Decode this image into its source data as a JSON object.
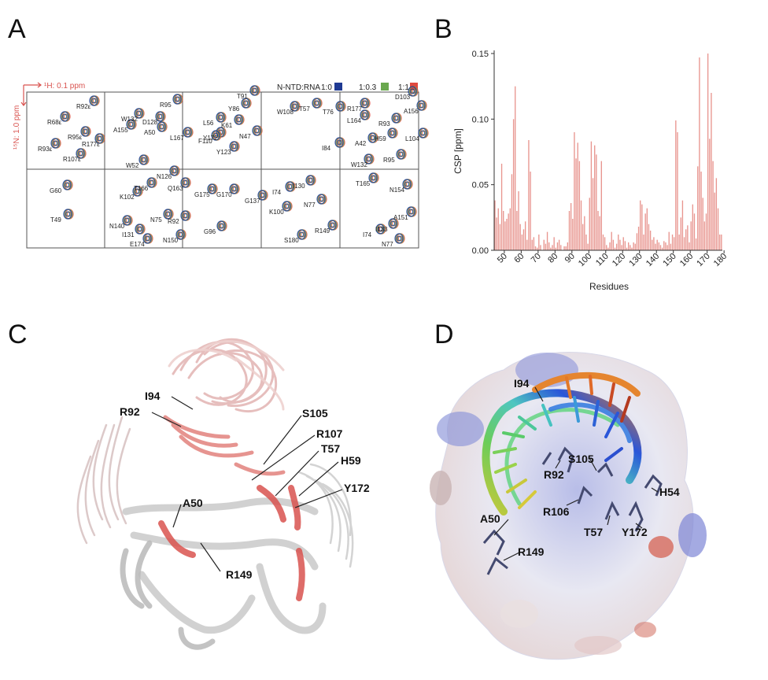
{
  "panels": {
    "a": "A",
    "b": "B",
    "c": "C",
    "d": "D"
  },
  "panel_a": {
    "proton_scale": "¹H: 0.1 ppm",
    "nitrogen_scale": "¹⁵N: 1.0 ppm",
    "legend": {
      "title": "N-NTD:RNA",
      "items": [
        {
          "label": "1:0",
          "color": "#1f3a93"
        },
        {
          "label": "1:0.3",
          "color": "#6aa84f"
        },
        {
          "label": "1:1",
          "color": "#e0483e"
        }
      ]
    },
    "peak_labels": [
      "R92ε",
      "R68ε",
      "R95ε",
      "R177ε",
      "R93ε",
      "R107ε",
      "R95",
      "W132",
      "D128",
      "A155",
      "A50",
      "L167",
      "W52",
      "T91",
      "Y86",
      "L56",
      "K61",
      "N47",
      "Y172",
      "Y123",
      "F110",
      "W108",
      "T57",
      "T76",
      "I84",
      "R177",
      "D103",
      "A156",
      "L164",
      "R93",
      "H59",
      "L104",
      "A42",
      "W132",
      "R95",
      "G60",
      "T49",
      "N126",
      "T166",
      "Q163",
      "K102",
      "N75",
      "R92",
      "N140",
      "I131",
      "E174",
      "N150",
      "G175",
      "G170",
      "G137",
      "G96",
      "I74",
      "I130",
      "N77",
      "K100",
      "S180",
      "R149",
      "T165",
      "N154",
      "A151",
      "I133",
      "I74",
      "N77"
    ]
  },
  "chart_data": {
    "type": "bar",
    "ylabel": "CSP [ppm]",
    "xlabel": "Residues",
    "ylim": [
      0,
      0.15
    ],
    "yticks": [
      "0.00",
      "0.05",
      "0.10",
      "0.15"
    ],
    "xticks": [
      "50",
      "60",
      "70",
      "80",
      "90",
      "100",
      "110",
      "120",
      "130",
      "140",
      "150",
      "160",
      "170",
      "180"
    ],
    "bar_color": "#e8958f",
    "x_start": 44,
    "values": [
      0.038,
      0.025,
      0.032,
      0.02,
      0.066,
      0.03,
      0.022,
      0.024,
      0.028,
      0.032,
      0.058,
      0.1,
      0.125,
      0.03,
      0.045,
      0.02,
      0.012,
      0.016,
      0.022,
      0.008,
      0.084,
      0.06,
      0.008,
      0.01,
      0.003,
      0.002,
      0.012,
      0.004,
      0.0,
      0.008,
      0.005,
      0.014,
      0.006,
      0.002,
      0.004,
      0.01,
      0.002,
      0.006,
      0.008,
      0.004,
      0.0,
      0.003,
      0.003,
      0.006,
      0.03,
      0.036,
      0.024,
      0.09,
      0.07,
      0.082,
      0.068,
      0.038,
      0.02,
      0.026,
      0.012,
      0.005,
      0.04,
      0.083,
      0.055,
      0.08,
      0.073,
      0.03,
      0.026,
      0.068,
      0.012,
      0.01,
      0.004,
      0.002,
      0.006,
      0.014,
      0.008,
      0.002,
      0.005,
      0.012,
      0.008,
      0.004,
      0.01,
      0.007,
      0.002,
      0.006,
      0.004,
      0.002,
      0.006,
      0.005,
      0.013,
      0.018,
      0.038,
      0.035,
      0.012,
      0.028,
      0.032,
      0.02,
      0.015,
      0.008,
      0.01,
      0.005,
      0.008,
      0.006,
      0.004,
      0.002,
      0.007,
      0.006,
      0.004,
      0.014,
      0.005,
      0.012,
      0.01,
      0.099,
      0.09,
      0.012,
      0.025,
      0.038,
      0.01,
      0.016,
      0.019,
      0.006,
      0.022,
      0.035,
      0.028,
      0.009,
      0.064,
      0.147,
      0.06,
      0.04,
      0.022,
      0.028,
      0.15,
      0.085,
      0.12,
      0.068,
      0.044,
      0.055,
      0.032,
      0.012,
      0.012
    ]
  },
  "panel_c": {
    "labels": [
      "I94",
      "R92",
      "S105",
      "R107",
      "T57",
      "H59",
      "Y172",
      "A50",
      "R149"
    ]
  },
  "panel_d": {
    "labels": [
      "I94",
      "R92",
      "S105",
      "R106",
      "H54",
      "A50",
      "T57",
      "Y172",
      "R149"
    ]
  }
}
